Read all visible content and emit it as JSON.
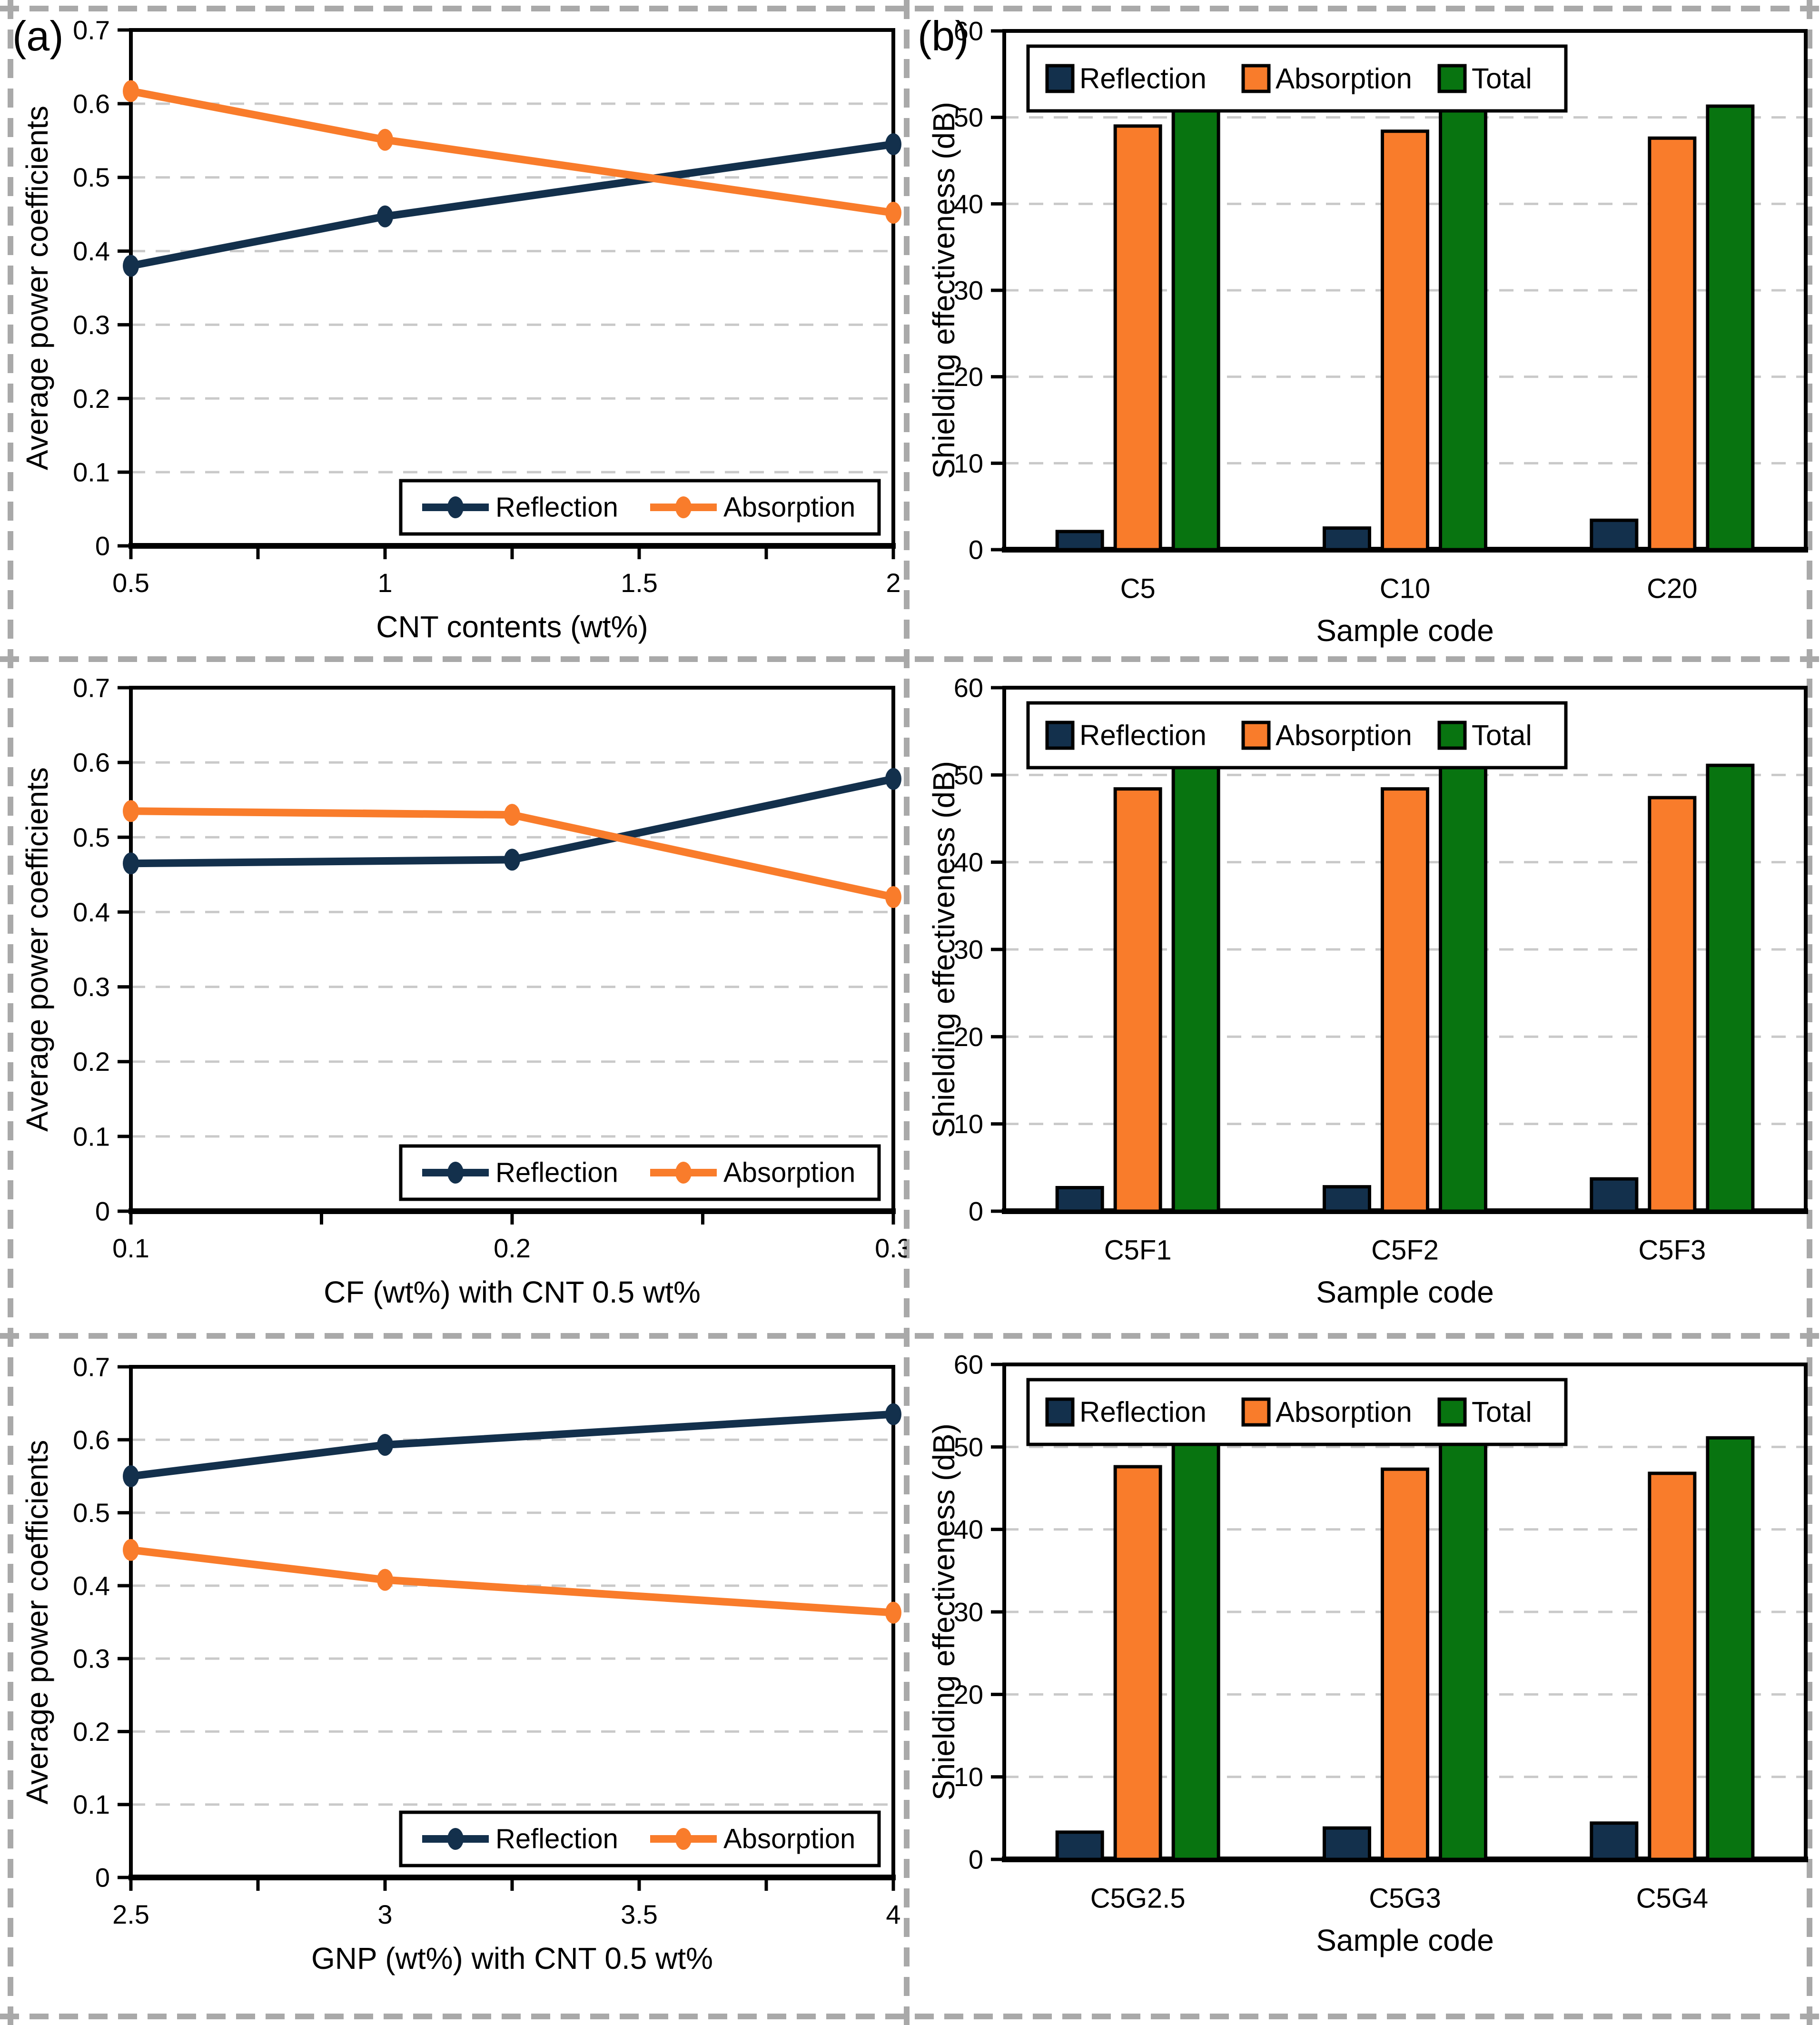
{
  "figure": {
    "panel_a_label": "(a)",
    "panel_b_label": "(b)"
  },
  "colors": {
    "reflection": "#13304C",
    "absorption": "#F97C2B",
    "total": "#087410",
    "grid": "#C9C9C9",
    "axis": "#000000",
    "divider": "#A9A9A9",
    "background": "#FFFFFF"
  },
  "chart_data": [
    {
      "id": "a1",
      "type": "line",
      "ylabel": "Average power coefficients",
      "xlabel": "CNT contents (wt%)",
      "ylim": [
        0,
        0.7
      ],
      "ytick_step": 0.1,
      "ytick_format": "dec1",
      "xlim": [
        0.5,
        2
      ],
      "xticks": [
        0.5,
        1,
        1.5,
        2
      ],
      "xtick_labels": [
        "0.5",
        "1",
        "1.5",
        "2"
      ],
      "minor_xticks": [
        0.75,
        1.25,
        1.75
      ],
      "x": [
        0.5,
        1,
        2
      ],
      "grid": "dashed-horizontal",
      "legend_position": "bottom-right",
      "series": [
        {
          "name": "Reflection",
          "color_key": "reflection",
          "values": [
            0.38,
            0.447,
            0.545
          ]
        },
        {
          "name": "Absorption",
          "color_key": "absorption",
          "values": [
            0.617,
            0.551,
            0.452
          ]
        }
      ]
    },
    {
      "id": "a2",
      "type": "line",
      "ylabel": "Average power coefficients",
      "xlabel": "CF (wt%) with CNT 0.5 wt%",
      "ylim": [
        0,
        0.7
      ],
      "ytick_step": 0.1,
      "ytick_format": "dec1",
      "xlim": [
        0.1,
        0.3
      ],
      "xticks": [
        0.1,
        0.2,
        0.3
      ],
      "xtick_labels": [
        "0.1",
        "0.2",
        "0.3"
      ],
      "minor_xticks": [
        0.15,
        0.25
      ],
      "x": [
        0.1,
        0.2,
        0.3
      ],
      "grid": "dashed-horizontal",
      "legend_position": "bottom-right",
      "series": [
        {
          "name": "Reflection",
          "color_key": "reflection",
          "values": [
            0.465,
            0.47,
            0.578
          ]
        },
        {
          "name": "Absorption",
          "color_key": "absorption",
          "values": [
            0.535,
            0.53,
            0.42
          ]
        }
      ]
    },
    {
      "id": "a3",
      "type": "line",
      "ylabel": "Average power coefficients",
      "xlabel": "GNP (wt%) with CNT 0.5 wt%",
      "ylim": [
        0,
        0.7
      ],
      "ytick_step": 0.1,
      "ytick_format": "dec1",
      "xlim": [
        2.5,
        4
      ],
      "xticks": [
        2.5,
        3,
        3.5,
        4
      ],
      "xtick_labels": [
        "2.5",
        "3",
        "3.5",
        "4"
      ],
      "minor_xticks": [
        2.75,
        3.25,
        3.75
      ],
      "x": [
        2.5,
        3,
        4
      ],
      "grid": "dashed-horizontal",
      "legend_position": "bottom-right",
      "series": [
        {
          "name": "Reflection",
          "color_key": "reflection",
          "values": [
            0.55,
            0.593,
            0.635
          ]
        },
        {
          "name": "Absorption",
          "color_key": "absorption",
          "values": [
            0.449,
            0.408,
            0.363
          ]
        }
      ]
    },
    {
      "id": "b1",
      "type": "bar",
      "ylabel": "Shielding effectiveness (dB)",
      "xlabel": "Sample code",
      "ylim": [
        0,
        60
      ],
      "ytick_step": 10,
      "ytick_format": "int",
      "categories": [
        "C5",
        "C10",
        "C20"
      ],
      "grid": "dashed-horizontal",
      "legend_position": "top",
      "series": [
        {
          "name": "Reflection",
          "color_key": "reflection",
          "values": [
            2.1,
            2.5,
            3.4
          ]
        },
        {
          "name": "Absorption",
          "color_key": "absorption",
          "values": [
            49.0,
            48.4,
            47.6
          ]
        },
        {
          "name": "Total",
          "color_key": "total",
          "values": [
            51.3,
            51.3,
            51.3
          ]
        }
      ]
    },
    {
      "id": "b2",
      "type": "bar",
      "ylabel": "Shielding effectiveness (dB)",
      "xlabel": "Sample code",
      "ylim": [
        0,
        60
      ],
      "ytick_step": 10,
      "ytick_format": "int",
      "categories": [
        "C5F1",
        "C5F2",
        "C5F3"
      ],
      "grid": "dashed-horizontal",
      "legend_position": "top",
      "series": [
        {
          "name": "Reflection",
          "color_key": "reflection",
          "values": [
            2.7,
            2.8,
            3.7
          ]
        },
        {
          "name": "Absorption",
          "color_key": "absorption",
          "values": [
            48.4,
            48.4,
            47.4
          ]
        },
        {
          "name": "Total",
          "color_key": "total",
          "values": [
            51.2,
            51.2,
            51.1
          ]
        }
      ]
    },
    {
      "id": "b3",
      "type": "bar",
      "ylabel": "Shielding effectiveness (dB)",
      "xlabel": "Sample code",
      "ylim": [
        0,
        60
      ],
      "ytick_step": 10,
      "ytick_format": "int",
      "categories": [
        "C5G2.5",
        "C5G3",
        "C5G4"
      ],
      "grid": "dashed-horizontal",
      "legend_position": "top",
      "series": [
        {
          "name": "Reflection",
          "color_key": "reflection",
          "values": [
            3.3,
            3.8,
            4.4
          ]
        },
        {
          "name": "Absorption",
          "color_key": "absorption",
          "values": [
            47.6,
            47.3,
            46.8
          ]
        },
        {
          "name": "Total",
          "color_key": "total",
          "values": [
            51.2,
            51.3,
            51.1
          ]
        }
      ]
    }
  ]
}
